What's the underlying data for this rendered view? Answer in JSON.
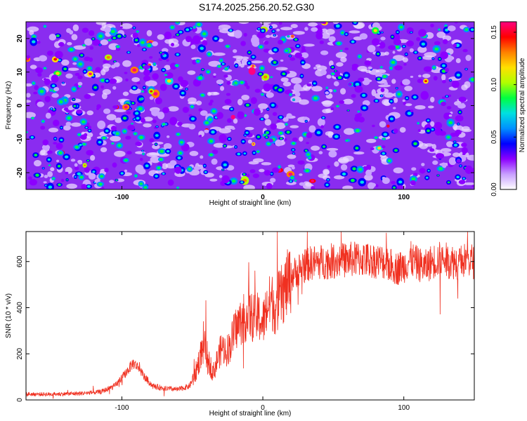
{
  "title": "S174.2025.256.20.52.G30",
  "chart_data": [
    {
      "type": "heatmap",
      "xlabel": "Height of straight line (km)",
      "ylabel": "Frequency (Hz)",
      "xlim": [
        -168,
        150
      ],
      "ylim": [
        -25,
        25
      ],
      "xticks": [
        -100,
        0,
        100
      ],
      "yticks": [
        -20,
        -10,
        0,
        10,
        20
      ],
      "colorbar": {
        "label": "Normalized spectral amplitude",
        "range": [
          0,
          0.16
        ],
        "ticks": [
          "0.00",
          "0.05",
          "0.10",
          "0.15"
        ],
        "colors": [
          "#ffffff",
          "#c8a0ff",
          "#8c00ff",
          "#0000ff",
          "#0090ff",
          "#00e0e0",
          "#00ff40",
          "#b0ff00",
          "#ffe000",
          "#ff8000",
          "#ff0000",
          "#ff0080"
        ]
      },
      "description_values": {
        "background_level": 0.015,
        "typical_spot_level": 0.04,
        "max_spot_level": 0.16
      }
    },
    {
      "type": "line",
      "xlabel": "Height of straight line (km)",
      "ylabel": "SNR (10 * v/v)",
      "xlim": [
        -168,
        150
      ],
      "ylim": [
        0,
        730
      ],
      "xticks": [
        -100,
        0,
        100
      ],
      "yticks": [
        0,
        200,
        400,
        600
      ],
      "color": "#f03020",
      "series": [
        {
          "name": "SNR",
          "x": [
            -168,
            -150,
            -130,
            -115,
            -105,
            -98,
            -92,
            -88,
            -84,
            -78,
            -70,
            -60,
            -52,
            -48,
            -44,
            -41,
            -38,
            -35,
            -32,
            -29,
            -26,
            -23,
            -20,
            -17,
            -14,
            -10,
            -6,
            -3,
            0,
            3,
            6,
            9,
            12,
            15,
            18,
            21,
            24,
            28,
            35,
            45,
            55,
            65,
            70,
            78,
            85,
            90,
            95,
            100,
            105,
            110,
            115,
            120,
            125,
            130,
            135,
            140,
            145,
            150
          ],
          "values": [
            25,
            25,
            28,
            35,
            60,
            110,
            160,
            140,
            100,
            60,
            50,
            45,
            60,
            110,
            200,
            230,
            160,
            120,
            180,
            230,
            210,
            240,
            300,
            330,
            350,
            370,
            350,
            360,
            330,
            400,
            430,
            400,
            440,
            470,
            510,
            540,
            560,
            580,
            595,
            600,
            605,
            610,
            610,
            605,
            600,
            585,
            570,
            580,
            610,
            590,
            575,
            600,
            610,
            605,
            600,
            595,
            610,
            600
          ]
        }
      ]
    }
  ]
}
